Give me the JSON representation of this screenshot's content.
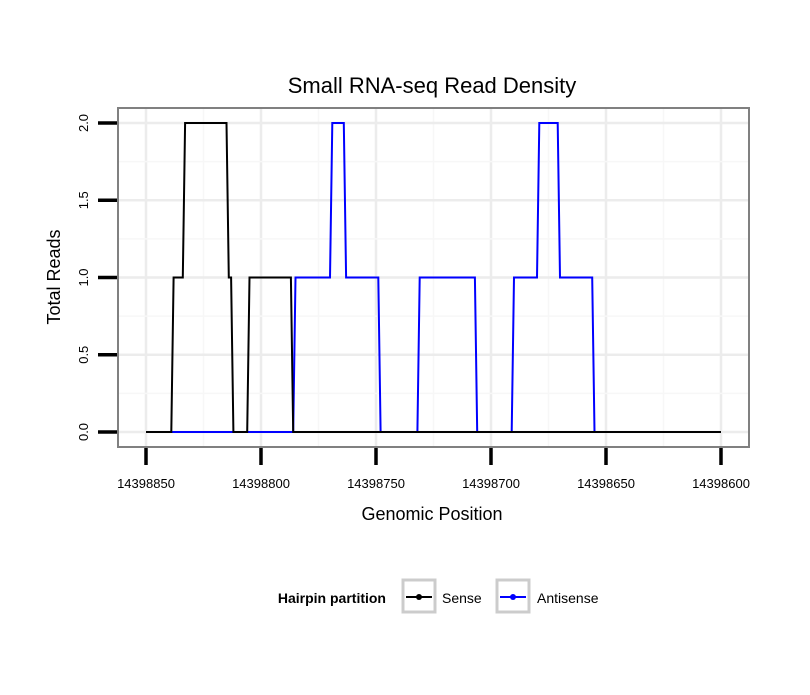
{
  "chart_data": {
    "type": "line",
    "title": "Small RNA-seq Read Density",
    "xlabel": "Genomic Position",
    "ylabel": "Total Reads",
    "xlim": [
      14398850,
      14398600
    ],
    "x_reversed": true,
    "ylim": [
      0,
      2
    ],
    "x_ticks": [
      14398850,
      14398800,
      14398750,
      14398700,
      14398650,
      14398600
    ],
    "x_tick_labels": [
      "14398850",
      "14398800",
      "14398750",
      "14398700",
      "14398650",
      "14398600"
    ],
    "y_ticks": [
      0,
      0.5,
      1,
      1.5,
      2
    ],
    "y_tick_labels": [
      "0.0",
      "0.5",
      "1.0",
      "1.5",
      "2.0"
    ],
    "grid": true,
    "legend": {
      "title": "Hairpin partition",
      "position": "bottom",
      "entries": [
        {
          "name": "Sense",
          "color": "#000000"
        },
        {
          "name": "Antisense",
          "color": "#0000ff"
        }
      ]
    },
    "series": [
      {
        "name": "Sense",
        "color": "#000000",
        "points": [
          [
            14398850,
            0
          ],
          [
            14398839,
            0
          ],
          [
            14398838,
            1
          ],
          [
            14398834,
            1
          ],
          [
            14398833,
            2
          ],
          [
            14398815,
            2
          ],
          [
            14398814,
            1
          ],
          [
            14398813,
            1
          ],
          [
            14398812,
            0
          ],
          [
            14398806,
            0
          ],
          [
            14398805,
            1
          ],
          [
            14398787,
            1
          ],
          [
            14398786,
            0
          ],
          [
            14398600,
            0
          ]
        ]
      },
      {
        "name": "Antisense",
        "color": "#0000ff",
        "points": [
          [
            14398850,
            0
          ],
          [
            14398786,
            0
          ],
          [
            14398785,
            1
          ],
          [
            14398770,
            1
          ],
          [
            14398769,
            2
          ],
          [
            14398764,
            2
          ],
          [
            14398763,
            1
          ],
          [
            14398749,
            1
          ],
          [
            14398748,
            0
          ],
          [
            14398732,
            0
          ],
          [
            14398731,
            1
          ],
          [
            14398707,
            1
          ],
          [
            14398706,
            0
          ],
          [
            14398691,
            0
          ],
          [
            14398690,
            1
          ],
          [
            14398680,
            1
          ],
          [
            14398679,
            2
          ],
          [
            14398671,
            2
          ],
          [
            14398670,
            1
          ],
          [
            14398656,
            1
          ],
          [
            14398655,
            0
          ],
          [
            14398600,
            0
          ]
        ]
      }
    ]
  }
}
